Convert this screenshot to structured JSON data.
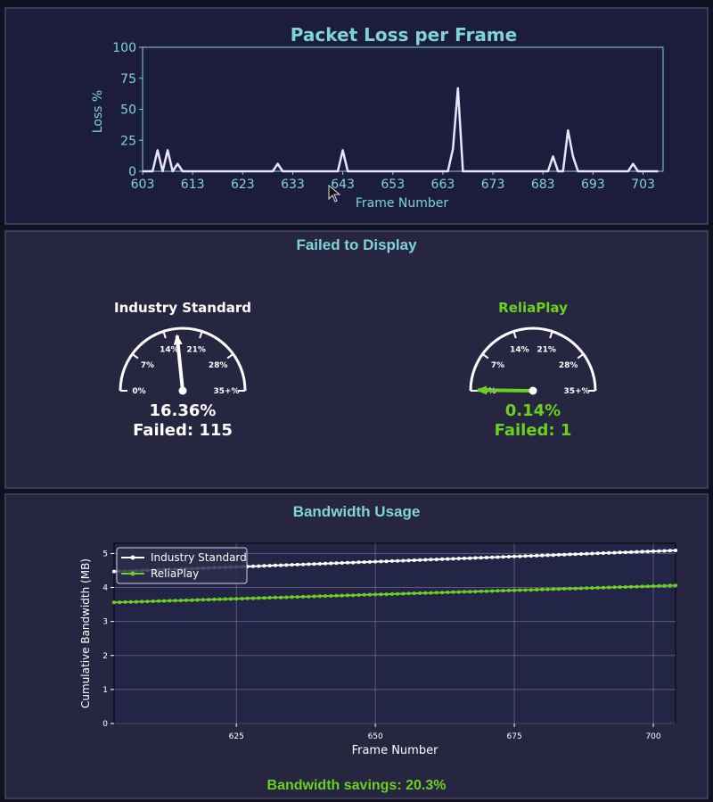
{
  "colors": {
    "accent": "#7fd3dc",
    "industry": "#ffffff",
    "reliaplay": "#6cd11e",
    "loss_line": "#e6e6fa"
  },
  "chart_data": [
    {
      "type": "line",
      "title": "Packet Loss per Frame",
      "xlabel": "Frame Number",
      "ylabel": "Loss %",
      "xlim": [
        603,
        707
      ],
      "ylim": [
        0,
        100
      ],
      "xticks": [
        603,
        613,
        623,
        633,
        643,
        653,
        663,
        673,
        683,
        693,
        703
      ],
      "yticks": [
        0,
        25,
        50,
        75,
        100
      ],
      "grid": false,
      "series": [
        {
          "color": "#e6e6fa",
          "points": [
            [
              603,
              0
            ],
            [
              605,
              0
            ],
            [
              606,
              17
            ],
            [
              607,
              0
            ],
            [
              608,
              17
            ],
            [
              609,
              0
            ],
            [
              610,
              6
            ],
            [
              611,
              0
            ],
            [
              629,
              0
            ],
            [
              630,
              6
            ],
            [
              631,
              0
            ],
            [
              642,
              0
            ],
            [
              643,
              17
            ],
            [
              644,
              0
            ],
            [
              664,
              0
            ],
            [
              665,
              18
            ],
            [
              666,
              67
            ],
            [
              667,
              0
            ],
            [
              684,
              0
            ],
            [
              685,
              12
            ],
            [
              686,
              0
            ],
            [
              687,
              0
            ],
            [
              688,
              33
            ],
            [
              689,
              12
            ],
            [
              690,
              0
            ],
            [
              700,
              0
            ],
            [
              701,
              6
            ],
            [
              702,
              0
            ],
            [
              706,
              0
            ]
          ]
        }
      ]
    },
    {
      "type": "gauge",
      "title": "Failed to Display",
      "scale_labels": [
        "0%",
        "7%",
        "14%",
        "21%",
        "28%",
        "35+%"
      ],
      "scale_max": 35,
      "gauges": [
        {
          "name": "Industry Standard",
          "value": 16.36,
          "value_label": "16.36%",
          "failed_label": "Failed: 115",
          "color": "#ffffff"
        },
        {
          "name": "ReliaPlay",
          "value": 0.14,
          "value_label": "0.14%",
          "failed_label": "Failed: 1",
          "color": "#6cd11e"
        }
      ]
    },
    {
      "type": "line",
      "title": "Bandwidth Usage",
      "xlabel": "Frame Number",
      "ylabel": "Cumulative Bandwidth (MB)",
      "xlim": [
        603,
        704
      ],
      "ylim": [
        0,
        5.3
      ],
      "xticks": [
        625,
        650,
        675,
        700
      ],
      "yticks": [
        0,
        1,
        2,
        3,
        4,
        5
      ],
      "grid": true,
      "legend": "top-left",
      "series": [
        {
          "name": "Industry Standard",
          "color": "#ffffff",
          "x_start": 603,
          "x_end": 704,
          "y_start": 4.47,
          "y_end": 5.09
        },
        {
          "name": "ReliaPlay",
          "color": "#6cd11e",
          "x_start": 603,
          "x_end": 704,
          "y_start": 3.56,
          "y_end": 4.06
        }
      ],
      "footer": "Bandwidth savings: 20.3%"
    }
  ]
}
